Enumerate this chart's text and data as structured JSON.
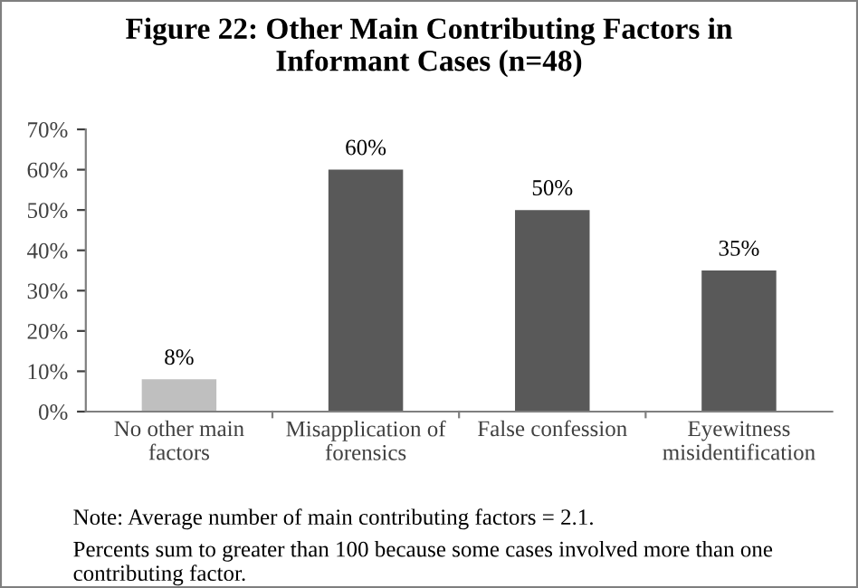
{
  "chart_data": {
    "type": "bar",
    "title": "Figure 22: Other Main Contributing Factors in\nInformant Cases (n=48)",
    "categories": [
      "No other main\nfactors",
      "Misapplication of\nforensics",
      "False confession",
      "Eyewitness\nmisidentification"
    ],
    "values": [
      8,
      60,
      50,
      35
    ],
    "colors": [
      "#bfbfbf",
      "#595959",
      "#595959",
      "#595959"
    ],
    "value_labels": [
      "8%",
      "60%",
      "50%",
      "35%"
    ],
    "ylim": [
      0,
      70
    ],
    "yticks": [
      {
        "value": 0,
        "label": "0%"
      },
      {
        "value": 10,
        "label": "10%"
      },
      {
        "value": 20,
        "label": "20%"
      },
      {
        "value": 30,
        "label": "30%"
      },
      {
        "value": 40,
        "label": "40%"
      },
      {
        "value": 50,
        "label": "50%"
      },
      {
        "value": 60,
        "label": "60%"
      },
      {
        "value": 70,
        "label": "70%"
      }
    ],
    "grid": false,
    "legend": false,
    "annotations": [
      "Note: Average number of main contributing factors = 2.1.",
      "Percents sum to greater than 100 because some cases involved more than one contributing factor."
    ]
  }
}
